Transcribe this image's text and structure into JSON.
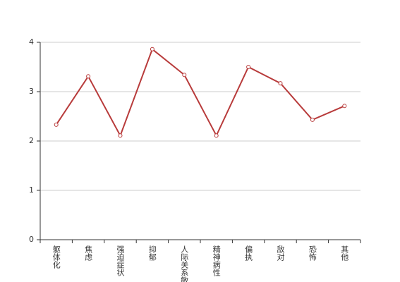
{
  "chart_data": {
    "type": "line",
    "categories": [
      "躯体化",
      "焦虑",
      "强迫症状",
      "抑郁",
      "人际关系敏感",
      "精神病性",
      "偏执",
      "敌对",
      "恐怖",
      "其他"
    ],
    "series": [
      {
        "color": "#b83b3b",
        "values": [
          2.33,
          3.31,
          2.11,
          3.86,
          3.34,
          2.11,
          3.5,
          3.17,
          2.43,
          2.71
        ]
      }
    ],
    "ylim": [
      0,
      4
    ],
    "yticks": [
      0,
      1,
      2,
      3,
      4
    ],
    "grid": true
  }
}
